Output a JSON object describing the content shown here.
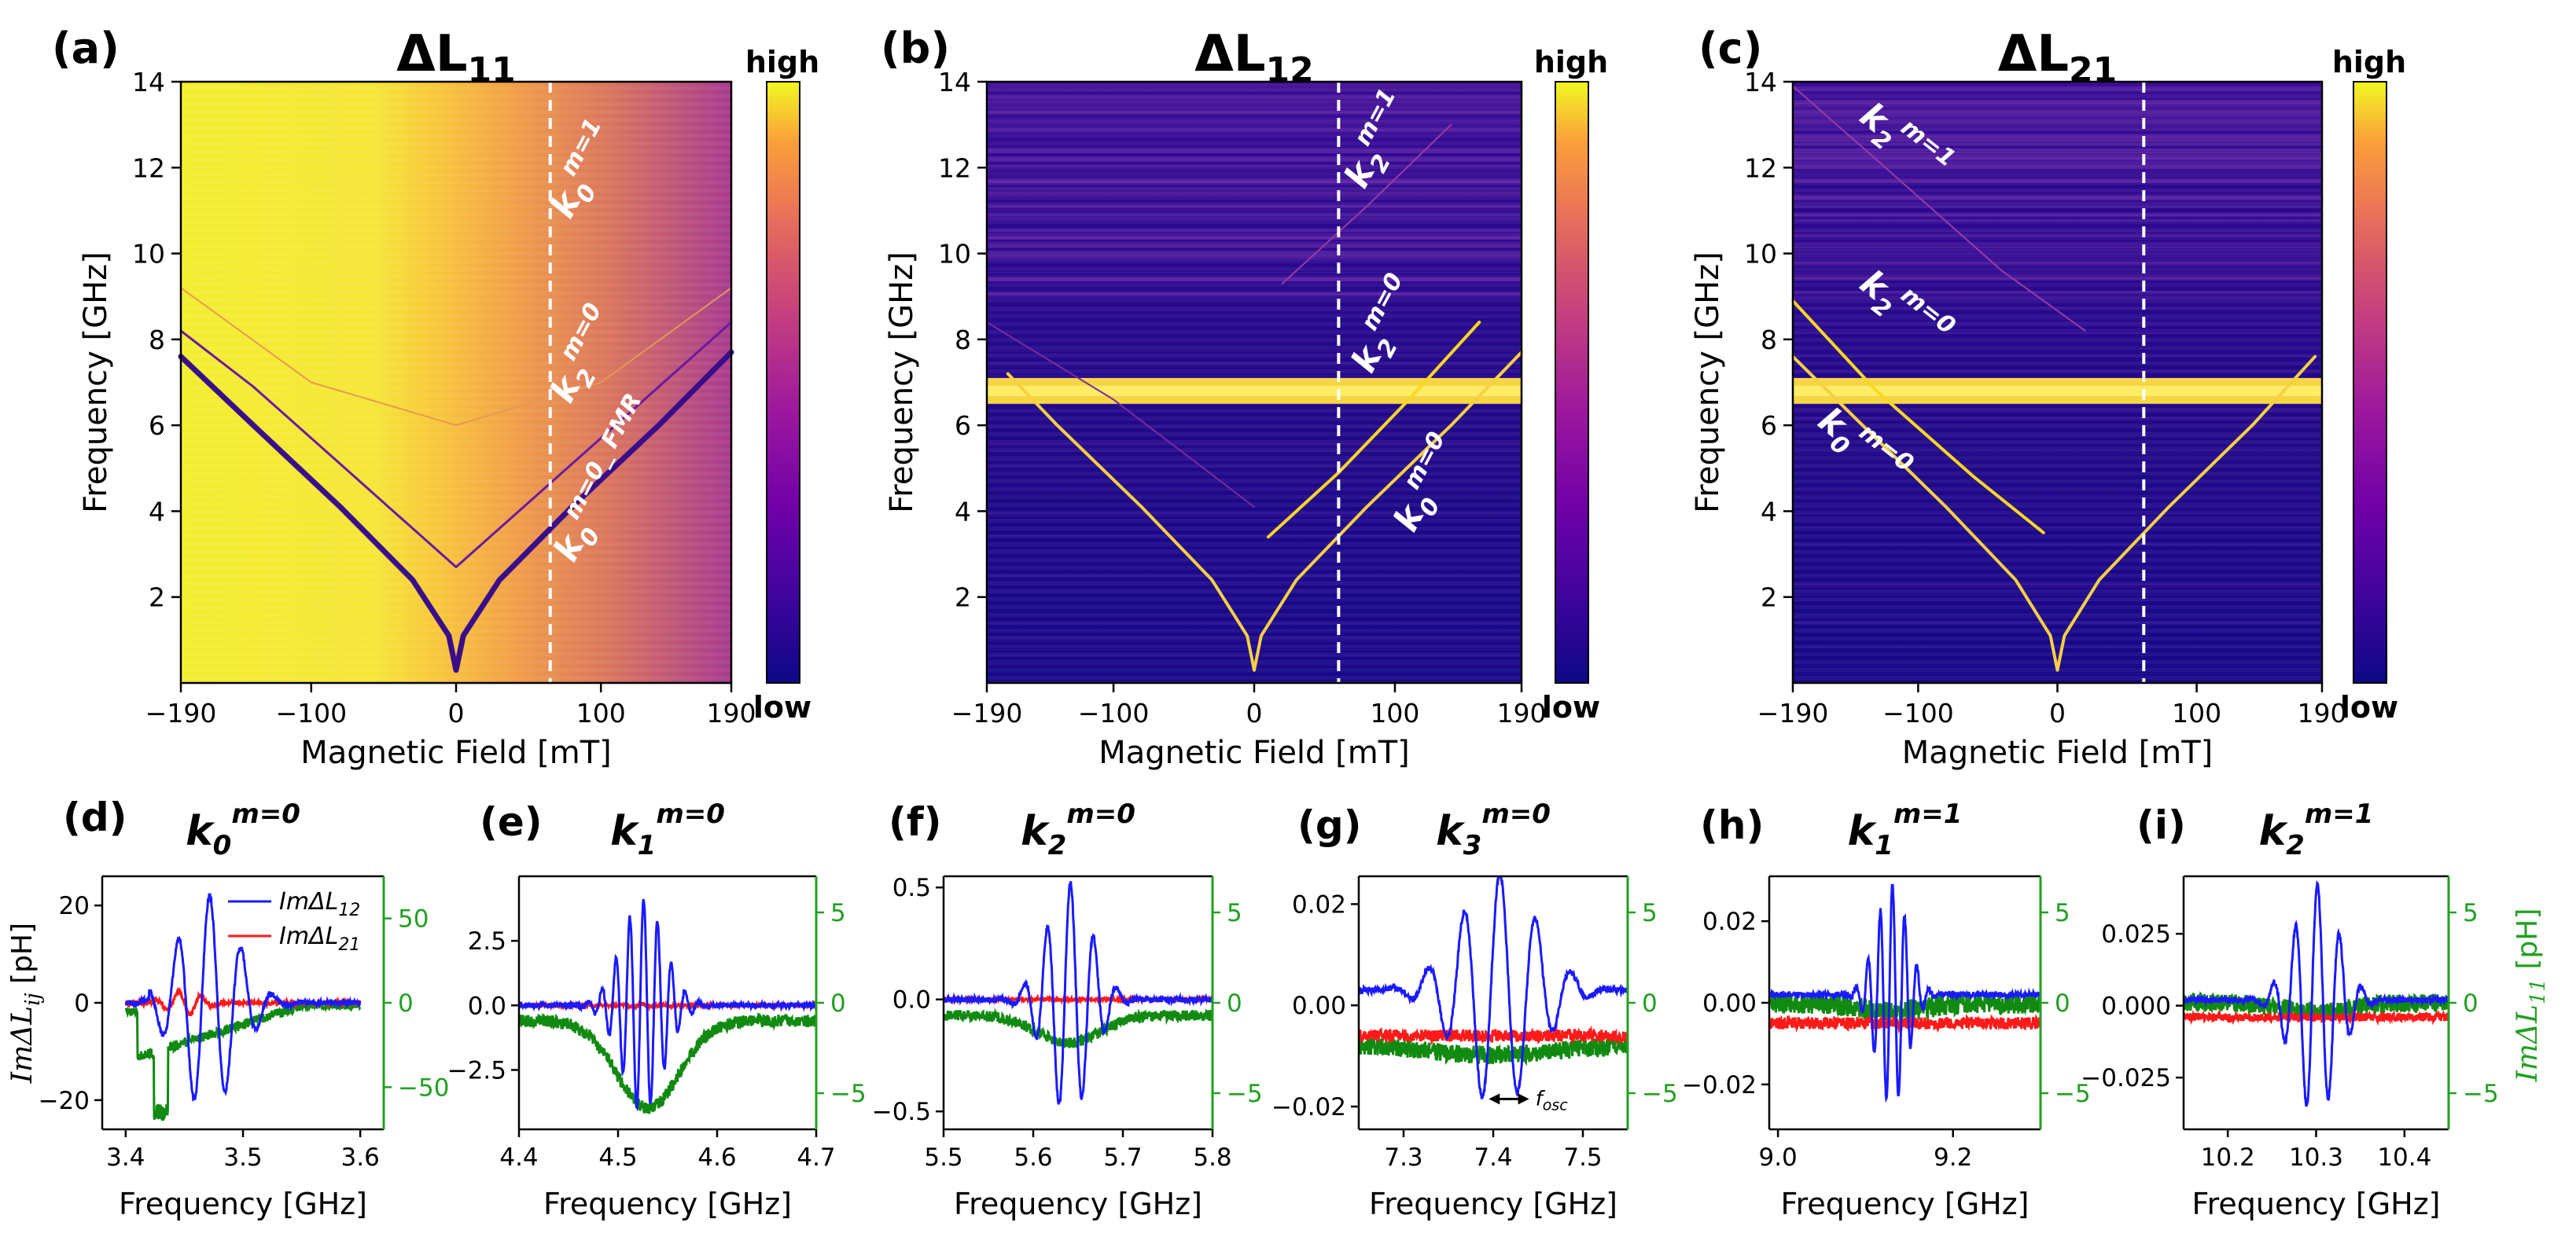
{
  "figure": {
    "colors": {
      "series_12": "#1a1aff",
      "series_21": "#ff1a1a",
      "series_11": "#118a11",
      "right_axis": "#22a022",
      "dashed": "#ffffff"
    },
    "colormap": "plasma"
  },
  "chart_data": [
    {
      "panel": "(a)",
      "type": "heatmap",
      "title": "ΔL11",
      "title_main": "ΔL",
      "title_sub": "11",
      "xlabel": "Magnetic Field [mT]",
      "ylabel": "Frequency [GHz]",
      "xlim": [
        -190,
        190
      ],
      "ylim": [
        0,
        14
      ],
      "xticks": [
        -190,
        -100,
        0,
        100,
        190
      ],
      "yticks": [
        2,
        4,
        6,
        8,
        10,
        12,
        14
      ],
      "colorbar": {
        "high": "high",
        "low": "low"
      },
      "background": "bright",
      "dashed_line_x": 65,
      "modes": [
        {
          "label_k": "k",
          "label_sub": "0",
          "label_sup": "m=1",
          "x_label": 95,
          "y_label": 11.8,
          "rot": -62
        },
        {
          "label_k": "k",
          "label_sub": "2",
          "label_sup": "m=0",
          "x_label": 95,
          "y_label": 7.5,
          "rot": -62
        },
        {
          "label_k": "k",
          "label_sub": "0",
          "label_sup": "m=0_ FMR",
          "x_label": 110,
          "y_label": 4.6,
          "rot": -62
        }
      ],
      "curves": [
        {
          "name": "FMR",
          "color": "#3a0e8a",
          "width": 7,
          "points": [
            [
              -190,
              7.6
            ],
            [
              -140,
              6.0
            ],
            [
              -80,
              4.1
            ],
            [
              -30,
              2.4
            ],
            [
              -5,
              1.1
            ],
            [
              0,
              0.3
            ],
            [
              5,
              1.1
            ],
            [
              30,
              2.4
            ],
            [
              80,
              4.1
            ],
            [
              140,
              6.0
            ],
            [
              190,
              7.7
            ]
          ]
        },
        {
          "name": "k2",
          "color": "#6a1aa0",
          "width": 3,
          "points": [
            [
              -190,
              8.2
            ],
            [
              -140,
              6.9
            ],
            [
              -80,
              5.1
            ],
            [
              -30,
              3.6
            ],
            [
              0,
              2.7
            ],
            [
              30,
              3.6
            ],
            [
              80,
              5.1
            ],
            [
              140,
              6.9
            ],
            [
              190,
              8.4
            ]
          ]
        },
        {
          "name": "k0m1",
          "color": "#e59a50",
          "width": 2,
          "points": [
            [
              -190,
              9.2
            ],
            [
              -100,
              7.0
            ],
            [
              0,
              6.0
            ],
            [
              100,
              7.0
            ],
            [
              190,
              9.2
            ]
          ]
        }
      ]
    },
    {
      "panel": "(b)",
      "type": "heatmap",
      "title": "ΔL12",
      "title_main": "ΔL",
      "title_sub": "12",
      "xlabel": "Magnetic Field [mT]",
      "ylabel": "Frequency [GHz]",
      "xlim": [
        -190,
        190
      ],
      "ylim": [
        0,
        14
      ],
      "xticks": [
        -190,
        -100,
        0,
        100,
        190
      ],
      "yticks": [
        2,
        4,
        6,
        8,
        10,
        12,
        14
      ],
      "colorbar": {
        "high": "high",
        "low": "low"
      },
      "background": "dark",
      "dashed_line_x": 60,
      "band_y": 6.8,
      "modes": [
        {
          "label_k": "k",
          "label_sub": "2",
          "label_sup": "m=1",
          "x_label": 95,
          "y_label": 12.5,
          "rot": -62
        },
        {
          "label_k": "k",
          "label_sub": "2",
          "label_sup": "m=0",
          "x_label": 100,
          "y_label": 8.2,
          "rot": -62
        },
        {
          "label_k": "k",
          "label_sub": "0",
          "label_sup": "m=0",
          "x_label": 130,
          "y_label": 4.5,
          "rot": -62
        }
      ],
      "curves": [
        {
          "name": "FMR-left",
          "color": "#f6d043",
          "width": 4,
          "points": [
            [
              -175,
              7.2
            ],
            [
              -140,
              6.0
            ],
            [
              -80,
              4.1
            ],
            [
              -30,
              2.4
            ],
            [
              -5,
              1.1
            ],
            [
              0,
              0.3
            ]
          ]
        },
        {
          "name": "FMR-right",
          "color": "#f6d043",
          "width": 4,
          "points": [
            [
              0,
              0.3
            ],
            [
              5,
              1.1
            ],
            [
              30,
              2.4
            ],
            [
              80,
              4.1
            ],
            [
              140,
              6.0
            ],
            [
              190,
              7.7
            ]
          ]
        },
        {
          "name": "k2m0",
          "color": "#fbd724",
          "width": 4,
          "points": [
            [
              10,
              3.4
            ],
            [
              60,
              4.9
            ],
            [
              110,
              6.6
            ],
            [
              160,
              8.4
            ]
          ]
        },
        {
          "name": "k2m1",
          "color": "#9a3aa8",
          "width": 2,
          "points": [
            [
              20,
              9.3
            ],
            [
              80,
              11.1
            ],
            [
              140,
              13.0
            ]
          ]
        },
        {
          "name": "faint",
          "color": "#7a2aa0",
          "width": 2,
          "points": [
            [
              -190,
              8.4
            ],
            [
              -100,
              6.6
            ],
            [
              0,
              4.1
            ]
          ]
        }
      ]
    },
    {
      "panel": "(c)",
      "type": "heatmap",
      "title": "ΔL21",
      "title_main": "ΔL",
      "title_sub": "21",
      "xlabel": "Magnetic Field [mT]",
      "ylabel": "Frequency [GHz]",
      "xlim": [
        -190,
        190
      ],
      "ylim": [
        0,
        14
      ],
      "xticks": [
        -190,
        -100,
        0,
        100,
        190
      ],
      "yticks": [
        2,
        4,
        6,
        8,
        10,
        12,
        14
      ],
      "colorbar": {
        "high": "high",
        "low": "low"
      },
      "background": "dark",
      "dashed_line_x": 62,
      "band_y": 6.8,
      "modes": [
        {
          "label_k": "k",
          "label_sub": "2",
          "label_sup": "m=1",
          "x_label": -115,
          "y_label": 12.4,
          "rot": 38
        },
        {
          "label_k": "k",
          "label_sub": "2",
          "label_sup": "m=0",
          "x_label": -115,
          "y_label": 8.5,
          "rot": 38
        },
        {
          "label_k": "k",
          "label_sub": "0",
          "label_sup": "m=0",
          "x_label": -145,
          "y_label": 5.3,
          "rot": 38
        }
      ],
      "curves": [
        {
          "name": "FMR-left",
          "color": "#f6d043",
          "width": 4,
          "points": [
            [
              -190,
              7.6
            ],
            [
              -140,
              6.0
            ],
            [
              -80,
              4.1
            ],
            [
              -30,
              2.4
            ],
            [
              -5,
              1.1
            ],
            [
              0,
              0.3
            ]
          ]
        },
        {
          "name": "FMR-right",
          "color": "#f6d043",
          "width": 4,
          "points": [
            [
              0,
              0.3
            ],
            [
              5,
              1.1
            ],
            [
              30,
              2.4
            ],
            [
              80,
              4.1
            ],
            [
              140,
              6.0
            ],
            [
              185,
              7.6
            ]
          ]
        },
        {
          "name": "k2m0",
          "color": "#fbd724",
          "width": 4,
          "points": [
            [
              -190,
              8.9
            ],
            [
              -130,
              6.8
            ],
            [
              -60,
              4.8
            ],
            [
              -10,
              3.5
            ]
          ]
        },
        {
          "name": "k2m1",
          "color": "#9a3aa8",
          "width": 2,
          "points": [
            [
              -190,
              13.9
            ],
            [
              -120,
              11.9
            ],
            [
              -40,
              9.6
            ],
            [
              20,
              8.2
            ]
          ]
        }
      ]
    },
    {
      "panel": "(d)",
      "type": "line",
      "title_k": "k",
      "title_sub": "0",
      "title_sup": "m=0",
      "xlabel": "Frequency [GHz]",
      "ylabel_main": "ImΔL",
      "ylabel_sub": "ij",
      "ylabel_unit": " [pH]",
      "xlim": [
        3.38,
        3.62
      ],
      "ylim": [
        -26,
        26
      ],
      "y2lim": [
        -75,
        75
      ],
      "xticks": [
        3.4,
        3.5,
        3.6
      ],
      "yticks": [
        -20,
        0,
        20
      ],
      "y2ticks": [
        -50,
        0,
        50
      ],
      "legend": [
        {
          "label_main": "ImΔL",
          "label_sub": "12",
          "color": "#1a1aff"
        },
        {
          "label_main": "ImΔL",
          "label_sub": "21",
          "color": "#ff1a1a"
        }
      ],
      "osc": {
        "center": 3.47,
        "width": 0.035,
        "period": 0.027,
        "amp": 22,
        "start": 3.42,
        "end": 3.6
      },
      "red": {
        "center": 3.45,
        "width": 0.02,
        "amp": 2.5,
        "noise": 0.5,
        "offset": 0
      },
      "green": {
        "dip": -65,
        "dip_center": 3.43,
        "dip_width": 0.005,
        "recover": 3.55,
        "noise": 3,
        "base": -10
      }
    },
    {
      "panel": "(e)",
      "type": "line",
      "title_k": "k",
      "title_sub": "1",
      "title_sup": "m=0",
      "xlabel": "Frequency [GHz]",
      "xlim": [
        4.4,
        4.7
      ],
      "ylim": [
        -4.8,
        5.0
      ],
      "y2lim": [
        -7,
        7
      ],
      "xticks": [
        4.4,
        4.5,
        4.6,
        4.7
      ],
      "yticks": [
        -2.5,
        0.0,
        2.5
      ],
      "y2ticks": [
        -5,
        0,
        5
      ],
      "osc": {
        "center": 4.525,
        "width": 0.03,
        "period": 0.014,
        "amp": 4.1,
        "start": 4.46,
        "end": 4.6
      },
      "red": {
        "amp": 0.05,
        "noise": 0.05,
        "offset": 0
      },
      "green": {
        "shape": "dip",
        "dip": -4.8,
        "dip_center": 4.53,
        "dip_width": 0.045,
        "noise": 0.35,
        "base": -1.0
      }
    },
    {
      "panel": "(f)",
      "type": "line",
      "title_k": "k",
      "title_sub": "2",
      "title_sup": "m=0",
      "xlabel": "Frequency [GHz]",
      "xlim": [
        5.5,
        5.8
      ],
      "ylim": [
        -0.58,
        0.55
      ],
      "y2lim": [
        -7,
        7
      ],
      "xticks": [
        5.5,
        5.6,
        5.7,
        5.8
      ],
      "yticks": [
        -0.5,
        0.0,
        0.5
      ],
      "y2ticks": [
        -5,
        0,
        5
      ],
      "osc": {
        "center": 5.64,
        "width": 0.035,
        "period": 0.026,
        "amp": 0.52,
        "start": 5.55,
        "end": 5.75
      },
      "red": {
        "amp": 0.0,
        "noise": 0.006,
        "offset": 0
      },
      "green": {
        "shape": "flat",
        "base": -0.7,
        "noise": 0.3,
        "dip": -1.5,
        "dip_center": 5.64,
        "dip_width": 0.05
      }
    },
    {
      "panel": "(g)",
      "type": "line",
      "title_k": "k",
      "title_sub": "3",
      "title_sup": "m=0",
      "xlabel": "Frequency [GHz]",
      "annotation": "f",
      "annotation_sub": "osc",
      "xlim": [
        7.25,
        7.55
      ],
      "ylim": [
        -0.0245,
        0.0255
      ],
      "y2lim": [
        -7,
        7
      ],
      "xticks": [
        7.3,
        7.4,
        7.5
      ],
      "yticks": [
        -0.02,
        0.0,
        0.02
      ],
      "y2ticks": [
        -5,
        0,
        5
      ],
      "osc": {
        "center": 7.405,
        "width": 0.06,
        "period": 0.04,
        "amp": 0.023,
        "start": 7.28,
        "end": 7.52,
        "base": 0.003
      },
      "red": {
        "amp": 0.0,
        "noise": 0.0012,
        "offset": -0.006
      },
      "green": {
        "shape": "flat",
        "base": -2.3,
        "noise": 0.5,
        "dip": -0.6,
        "dip_center": 7.4,
        "dip_width": 0.1
      }
    },
    {
      "panel": "(h)",
      "type": "line",
      "title_k": "k",
      "title_sub": "1",
      "title_sup": "m=1",
      "xlabel": "Frequency [GHz]",
      "xlim": [
        8.99,
        9.3
      ],
      "ylim": [
        -0.031,
        0.031
      ],
      "y2lim": [
        -7,
        7
      ],
      "xticks": [
        9.0,
        9.2
      ],
      "yticks": [
        -0.02,
        0.0,
        0.02
      ],
      "y2ticks": [
        -5,
        0,
        5
      ],
      "osc": {
        "center": 9.13,
        "width": 0.025,
        "period": 0.014,
        "amp": 0.027,
        "start": 9.08,
        "end": 9.19,
        "base": 0.002
      },
      "red": {
        "amp": 0.0,
        "noise": 0.0015,
        "offset": -0.005
      },
      "green": {
        "shape": "flat",
        "base": 0.0,
        "noise": 0.6,
        "dip": -0.5,
        "dip_center": 9.13,
        "dip_width": 0.05
      }
    },
    {
      "panel": "(i)",
      "type": "line",
      "title_k": "k",
      "title_sub": "2",
      "title_sup": "m=1",
      "xlabel": "Frequency [GHz]",
      "y2label_main": "ImΔL",
      "y2label_sub": "11",
      "y2label_unit": " [pH]",
      "xlim": [
        10.15,
        10.45
      ],
      "ylim": [
        -0.043,
        0.045
      ],
      "y2lim": [
        -7,
        7
      ],
      "xticks": [
        10.2,
        10.3,
        10.4
      ],
      "yticks": [
        -0.025,
        0.0,
        0.025
      ],
      "y2ticks": [
        -5,
        0,
        5
      ],
      "osc": {
        "center": 10.3,
        "width": 0.035,
        "period": 0.025,
        "amp": 0.04,
        "start": 10.2,
        "end": 10.38,
        "base": 0.002
      },
      "red": {
        "amp": 0.0,
        "noise": 0.0015,
        "offset": -0.004
      },
      "green": {
        "shape": "flat",
        "base": 0.0,
        "noise": 0.5,
        "dip": -0.5,
        "dip_center": 10.3,
        "dip_width": 0.05
      }
    }
  ]
}
